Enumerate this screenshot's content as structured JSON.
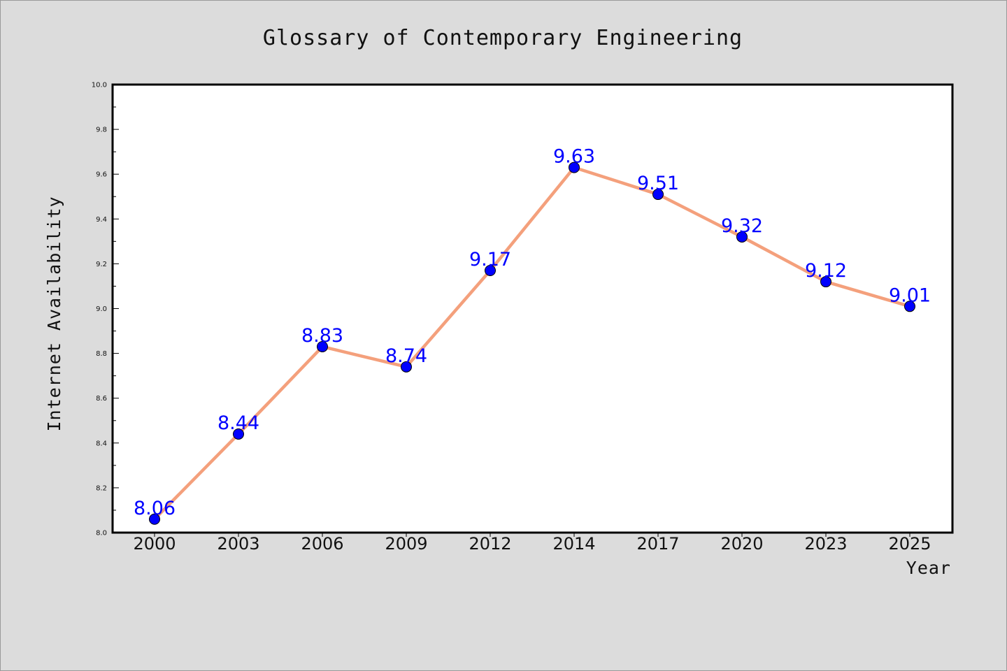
{
  "chart_data": {
    "type": "line",
    "title": "Glossary of Contemporary Engineering",
    "xlabel": "Year",
    "ylabel": "Internet Availability",
    "categories": [
      "2000",
      "2003",
      "2006",
      "2009",
      "2012",
      "2014",
      "2017",
      "2020",
      "2023",
      "2025"
    ],
    "series": [
      {
        "values": [
          8.06,
          8.44,
          8.83,
          8.74,
          9.17,
          9.63,
          9.51,
          9.32,
          9.12,
          9.01
        ],
        "data_labels": [
          "8.06",
          "8.44",
          "8.83",
          "8.74",
          "9.17",
          "9.63",
          "9.51",
          "9.32",
          "9.12",
          "9.01"
        ],
        "line_color": "#f4a07c",
        "marker_color": "#0000ff",
        "marker": "circle"
      }
    ],
    "ylim": [
      8.0,
      10.0
    ],
    "yticks": [
      "8.0",
      "8.2",
      "8.4",
      "8.6",
      "8.8",
      "9.0",
      "9.2",
      "9.4",
      "9.6",
      "9.8",
      "10.0"
    ],
    "grid": false,
    "legend": "none",
    "colors": {
      "figure_background": "#dcdcdc",
      "plot_background": "#ffffff",
      "label_color": "#0000ff"
    }
  }
}
